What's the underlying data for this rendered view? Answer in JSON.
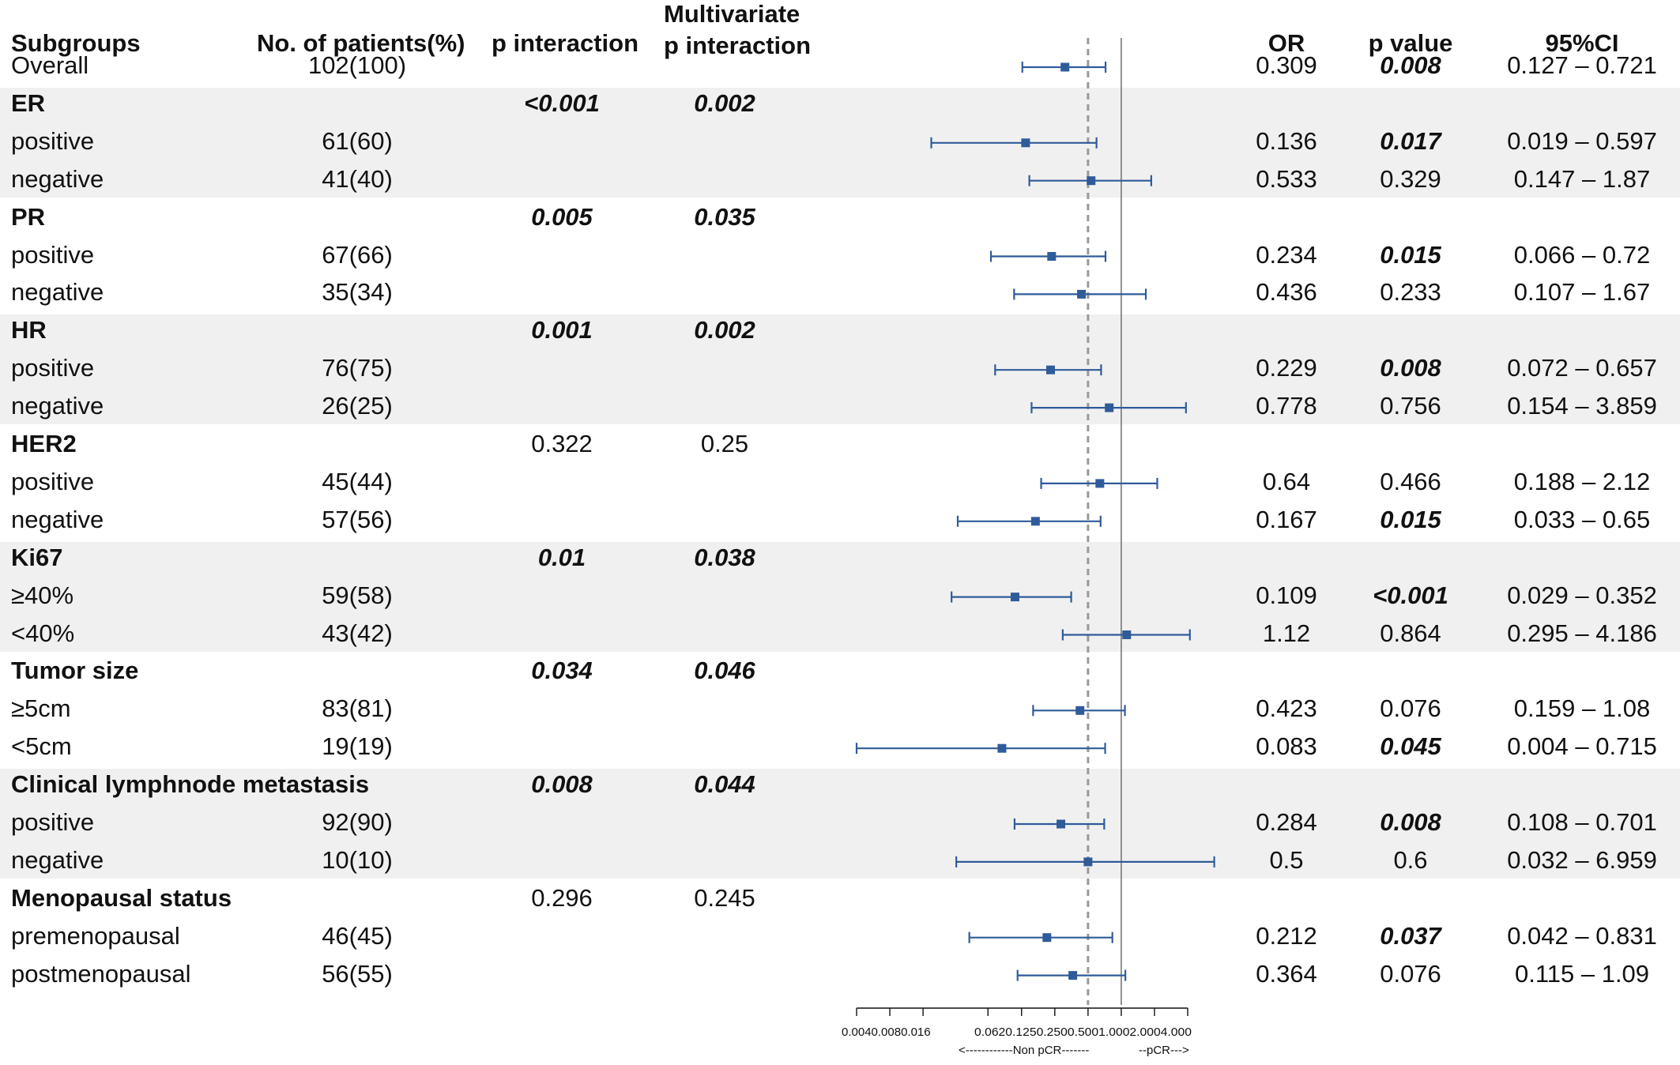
{
  "headers": {
    "subgroups": "Subgroups",
    "patients": "No. of patients(%)",
    "p_interaction": "p interaction",
    "multivariate_line1": "Multivariate",
    "multivariate_line2": "p interaction",
    "or": "OR",
    "p_value": "p value",
    "ci": "95%CI"
  },
  "rows": [
    {
      "label": "Overall",
      "patients": "102(100)",
      "or": "0.309",
      "p": "0.008",
      "p_sig": true,
      "ci": "0.127 – 0.721"
    },
    {
      "label": "ER",
      "group": true,
      "p_int": "<0.001",
      "p_int_sig": true,
      "mv": "0.002",
      "mv_sig": true
    },
    {
      "label": "positive",
      "patients": "61(60)",
      "or": "0.136",
      "p": "0.017",
      "p_sig": true,
      "ci": "0.019 – 0.597"
    },
    {
      "label": "negative",
      "patients": "41(40)",
      "or": "0.533",
      "p": "0.329",
      "p_sig": false,
      "ci": "0.147 – 1.87"
    },
    {
      "label": "PR",
      "group": true,
      "p_int": "0.005",
      "p_int_sig": true,
      "mv": "0.035",
      "mv_sig": true
    },
    {
      "label": "positive",
      "patients": "67(66)",
      "or": "0.234",
      "p": "0.015",
      "p_sig": true,
      "ci": "0.066 – 0.72"
    },
    {
      "label": "negative",
      "patients": "35(34)",
      "or": "0.436",
      "p": "0.233",
      "p_sig": false,
      "ci": "0.107 – 1.67"
    },
    {
      "label": "HR",
      "group": true,
      "p_int": "0.001",
      "p_int_sig": true,
      "mv": "0.002",
      "mv_sig": true
    },
    {
      "label": "positive",
      "patients": "76(75)",
      "or": "0.229",
      "p": "0.008",
      "p_sig": true,
      "ci": "0.072 – 0.657"
    },
    {
      "label": "negative",
      "patients": "26(25)",
      "or": "0.778",
      "p": "0.756",
      "p_sig": false,
      "ci": "0.154 – 3.859"
    },
    {
      "label": "HER2",
      "group": true,
      "p_int": "0.322",
      "p_int_sig": false,
      "mv": "0.25",
      "mv_sig": false
    },
    {
      "label": "positive",
      "patients": "45(44)",
      "or": "0.64",
      "p": "0.466",
      "p_sig": false,
      "ci": "0.188 – 2.12"
    },
    {
      "label": "negative",
      "patients": "57(56)",
      "or": "0.167",
      "p": "0.015",
      "p_sig": true,
      "ci": "0.033 – 0.65"
    },
    {
      "label": "Ki67",
      "group": true,
      "p_int": "0.01",
      "p_int_sig": true,
      "mv": "0.038",
      "mv_sig": true
    },
    {
      "label": "≥40%",
      "patients": "59(58)",
      "or": "0.109",
      "p": "<0.001",
      "p_sig": true,
      "ci": "0.029 – 0.352"
    },
    {
      "label": "<40%",
      "patients": "43(42)",
      "or": "1.12",
      "p": "0.864",
      "p_sig": false,
      "ci": "0.295 – 4.186"
    },
    {
      "label": "Tumor size",
      "group": true,
      "p_int": "0.034",
      "p_int_sig": true,
      "mv": "0.046",
      "mv_sig": true
    },
    {
      "label": "≥5cm",
      "patients": "83(81)",
      "or": "0.423",
      "p": "0.076",
      "p_sig": false,
      "ci": "0.159 – 1.08"
    },
    {
      "label": "<5cm",
      "patients": "19(19)",
      "or": "0.083",
      "p": "0.045",
      "p_sig": true,
      "ci": "0.004 – 0.715"
    },
    {
      "label": "Clinical lymphnode metastasis",
      "group": true,
      "p_int": "0.008",
      "p_int_sig": true,
      "mv": "0.044",
      "mv_sig": true
    },
    {
      "label": "positive",
      "patients": "92(90)",
      "or": "0.284",
      "p": "0.008",
      "p_sig": true,
      "ci": "0.108 – 0.701"
    },
    {
      "label": "negative",
      "patients": "10(10)",
      "or": "0.5",
      "p": "0.6",
      "p_sig": false,
      "ci": "0.032 – 6.959"
    },
    {
      "label": "Menopausal status",
      "group": true,
      "p_int": "0.296",
      "p_int_sig": false,
      "mv": "0.245",
      "mv_sig": false
    },
    {
      "label": "premenopausal",
      "patients": "46(45)",
      "or": "0.212",
      "p": "0.037",
      "p_sig": true,
      "ci": "0.042 – 0.831"
    },
    {
      "label": "postmenopausal",
      "patients": "56(55)",
      "or": "0.364",
      "p": "0.076",
      "p_sig": false,
      "ci": "0.115 – 1.09"
    }
  ],
  "chart_data": {
    "type": "forest",
    "x_scale": "log2",
    "xlim": [
      0.004,
      4.0
    ],
    "reference_line": 1.0,
    "overall_line": 0.5,
    "ticks": [
      0.004,
      0.008,
      0.016,
      0.062,
      0.125,
      0.25,
      0.5,
      1.0,
      2.0,
      4.0
    ],
    "tick_labels_left": "0.0040.0080.016",
    "tick_labels_right": "0.0620.1250.2500.5001.0002.0004.000",
    "xlabel_left": "<------------Non pCR-------",
    "xlabel_right": "--pCR--->",
    "series": [
      {
        "name": "Overall",
        "or": 0.309,
        "lo": 0.127,
        "hi": 0.721
      },
      {
        "name": "ER positive",
        "or": 0.136,
        "lo": 0.019,
        "hi": 0.597
      },
      {
        "name": "ER negative",
        "or": 0.533,
        "lo": 0.147,
        "hi": 1.87
      },
      {
        "name": "PR positive",
        "or": 0.234,
        "lo": 0.066,
        "hi": 0.72
      },
      {
        "name": "PR negative",
        "or": 0.436,
        "lo": 0.107,
        "hi": 1.67
      },
      {
        "name": "HR positive",
        "or": 0.229,
        "lo": 0.072,
        "hi": 0.657
      },
      {
        "name": "HR negative",
        "or": 0.778,
        "lo": 0.154,
        "hi": 3.859
      },
      {
        "name": "HER2 positive",
        "or": 0.64,
        "lo": 0.188,
        "hi": 2.12
      },
      {
        "name": "HER2 negative",
        "or": 0.167,
        "lo": 0.033,
        "hi": 0.65
      },
      {
        "name": "Ki67 ≥40%",
        "or": 0.109,
        "lo": 0.029,
        "hi": 0.352
      },
      {
        "name": "Ki67 <40%",
        "or": 1.12,
        "lo": 0.295,
        "hi": 4.186
      },
      {
        "name": "Tumor size ≥5cm",
        "or": 0.423,
        "lo": 0.159,
        "hi": 1.08
      },
      {
        "name": "Tumor size <5cm",
        "or": 0.083,
        "lo": 0.004,
        "hi": 0.715
      },
      {
        "name": "Lymphnode positive",
        "or": 0.284,
        "lo": 0.108,
        "hi": 0.701
      },
      {
        "name": "Lymphnode negative",
        "or": 0.5,
        "lo": 0.032,
        "hi": 6.959
      },
      {
        "name": "premenopausal",
        "or": 0.212,
        "lo": 0.042,
        "hi": 0.831
      },
      {
        "name": "postmenopausal",
        "or": 0.364,
        "lo": 0.115,
        "hi": 1.09
      }
    ],
    "colors": {
      "marker": "#2f5b99",
      "ref_line": "#777777",
      "overall_line": "#999999",
      "band": "#f0f0f0"
    }
  }
}
